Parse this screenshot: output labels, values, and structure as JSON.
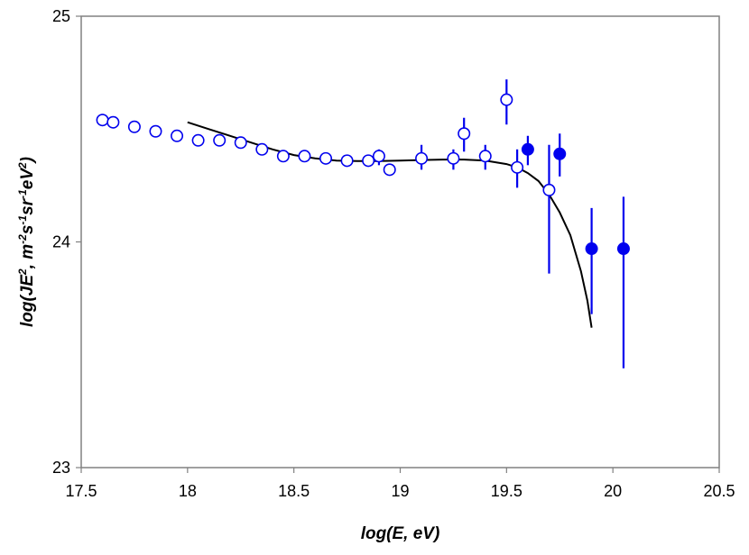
{
  "chart_data": {
    "type": "scatter",
    "title": "",
    "xlabel": "log(E, eV)",
    "ylabel_parts": [
      "log(JE",
      "2",
      ", m",
      "-2",
      "s",
      "-1",
      "sr",
      "-1",
      "eV",
      "2",
      ")"
    ],
    "xlim": [
      17.5,
      20.5
    ],
    "ylim": [
      23,
      25
    ],
    "xticks": [
      "17.5",
      "18",
      "18.5",
      "19",
      "19.5",
      "20",
      "20.5"
    ],
    "xtick_values": [
      17.5,
      18,
      18.5,
      19,
      19.5,
      20,
      20.5
    ],
    "yticks": [
      "23",
      "24",
      "25"
    ],
    "ytick_values": [
      23,
      24,
      25
    ],
    "grid": false,
    "colors": {
      "points": "#0000ee",
      "line": "#000000",
      "axis": "#808080"
    },
    "series": [
      {
        "name": "open circles",
        "marker": "open-circle",
        "points": [
          {
            "x": 17.6,
            "y": 24.54
          },
          {
            "x": 17.65,
            "y": 24.53
          },
          {
            "x": 17.75,
            "y": 24.51
          },
          {
            "x": 17.85,
            "y": 24.49
          },
          {
            "x": 17.95,
            "y": 24.47
          },
          {
            "x": 18.05,
            "y": 24.45
          },
          {
            "x": 18.15,
            "y": 24.45
          },
          {
            "x": 18.25,
            "y": 24.44
          },
          {
            "x": 18.35,
            "y": 24.41
          },
          {
            "x": 18.45,
            "y": 24.38
          },
          {
            "x": 18.55,
            "y": 24.38
          },
          {
            "x": 18.65,
            "y": 24.37
          },
          {
            "x": 18.75,
            "y": 24.36
          },
          {
            "x": 18.85,
            "y": 24.36
          },
          {
            "x": 18.9,
            "y": 24.38,
            "ylo": 24.34,
            "yhi": 24.41
          },
          {
            "x": 18.95,
            "y": 24.32,
            "ylo": 24.31,
            "yhi": 24.34
          },
          {
            "x": 19.1,
            "y": 24.37,
            "ylo": 24.32,
            "yhi": 24.43
          },
          {
            "x": 19.25,
            "y": 24.37,
            "ylo": 24.32,
            "yhi": 24.41
          },
          {
            "x": 19.3,
            "y": 24.48,
            "ylo": 24.4,
            "yhi": 24.55
          },
          {
            "x": 19.4,
            "y": 24.38,
            "ylo": 24.32,
            "yhi": 24.43
          },
          {
            "x": 19.5,
            "y": 24.63,
            "ylo": 24.52,
            "yhi": 24.72
          },
          {
            "x": 19.55,
            "y": 24.33,
            "ylo": 24.24,
            "yhi": 24.41
          },
          {
            "x": 19.7,
            "y": 24.23,
            "ylo": 23.86,
            "yhi": 24.43
          }
        ]
      },
      {
        "name": "filled circles",
        "marker": "filled-circle",
        "points": [
          {
            "x": 19.6,
            "y": 24.41,
            "ylo": 24.34,
            "yhi": 24.47
          },
          {
            "x": 19.75,
            "y": 24.39,
            "ylo": 24.29,
            "yhi": 24.48
          },
          {
            "x": 19.9,
            "y": 23.97,
            "ylo": 23.68,
            "yhi": 24.15
          },
          {
            "x": 20.05,
            "y": 23.97,
            "ylo": 23.44,
            "yhi": 24.2
          }
        ]
      }
    ],
    "fit_curve": {
      "name": "model fit",
      "points": [
        {
          "x": 18.0,
          "y": 24.53
        },
        {
          "x": 18.1,
          "y": 24.5
        },
        {
          "x": 18.2,
          "y": 24.47
        },
        {
          "x": 18.3,
          "y": 24.44
        },
        {
          "x": 18.4,
          "y": 24.41
        },
        {
          "x": 18.5,
          "y": 24.385
        },
        {
          "x": 18.6,
          "y": 24.37
        },
        {
          "x": 18.7,
          "y": 24.36
        },
        {
          "x": 18.8,
          "y": 24.358
        },
        {
          "x": 18.9,
          "y": 24.358
        },
        {
          "x": 19.0,
          "y": 24.36
        },
        {
          "x": 19.1,
          "y": 24.363
        },
        {
          "x": 19.2,
          "y": 24.365
        },
        {
          "x": 19.3,
          "y": 24.365
        },
        {
          "x": 19.4,
          "y": 24.36
        },
        {
          "x": 19.5,
          "y": 24.345
        },
        {
          "x": 19.55,
          "y": 24.33
        },
        {
          "x": 19.6,
          "y": 24.305
        },
        {
          "x": 19.65,
          "y": 24.27
        },
        {
          "x": 19.7,
          "y": 24.21
        },
        {
          "x": 19.75,
          "y": 24.13
        },
        {
          "x": 19.8,
          "y": 24.03
        },
        {
          "x": 19.85,
          "y": 23.87
        },
        {
          "x": 19.88,
          "y": 23.74
        },
        {
          "x": 19.9,
          "y": 23.62
        }
      ]
    }
  }
}
